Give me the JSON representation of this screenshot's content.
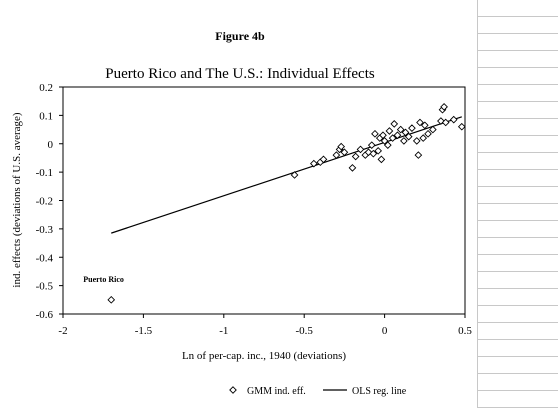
{
  "figure_label": "Figure 4b",
  "chart_data": {
    "type": "scatter",
    "title": "Puerto Rico and The U.S.: Individual Effects",
    "xlabel": "Ln of per-cap. inc., 1940 (deviations)",
    "ylabel": "ind. effects (deviations of U.S. average)",
    "xlim": [
      -2,
      0.5
    ],
    "ylim": [
      -0.6,
      0.2
    ],
    "xticks": [
      -2,
      -1.5,
      -1,
      -0.5,
      0,
      0.5
    ],
    "yticks": [
      0.2,
      0.1,
      0,
      -0.1,
      -0.2,
      -0.3,
      -0.4,
      -0.5,
      -0.6
    ],
    "xtick_labels": [
      "-2",
      "-1.5",
      "-1",
      "-0.5",
      "0",
      "0.5"
    ],
    "ytick_labels": [
      "0.2",
      "0.1",
      "0",
      "-0.1",
      "-0.2",
      "-0.3",
      "-0.4",
      "-0.5",
      "-0.6"
    ],
    "grid": false,
    "legend_position": "bottom",
    "series": [
      {
        "name": "GMM ind. eff.",
        "marker": "diamond",
        "points": [
          [
            -1.7,
            -0.55
          ],
          [
            -0.56,
            -0.11
          ],
          [
            -0.44,
            -0.07
          ],
          [
            -0.4,
            -0.065
          ],
          [
            -0.38,
            -0.055
          ],
          [
            -0.3,
            -0.04
          ],
          [
            -0.28,
            -0.02
          ],
          [
            -0.27,
            -0.01
          ],
          [
            -0.25,
            -0.03
          ],
          [
            -0.2,
            -0.085
          ],
          [
            -0.18,
            -0.045
          ],
          [
            -0.15,
            -0.02
          ],
          [
            -0.12,
            -0.04
          ],
          [
            -0.1,
            -0.03
          ],
          [
            -0.08,
            -0.005
          ],
          [
            -0.07,
            -0.035
          ],
          [
            -0.06,
            0.035
          ],
          [
            -0.04,
            -0.025
          ],
          [
            -0.03,
            0.02
          ],
          [
            -0.02,
            -0.055
          ],
          [
            -0.01,
            0.03
          ],
          [
            0.0,
            0.01
          ],
          [
            0.02,
            -0.005
          ],
          [
            0.03,
            0.045
          ],
          [
            0.05,
            0.02
          ],
          [
            0.06,
            0.07
          ],
          [
            0.08,
            0.03
          ],
          [
            0.1,
            0.05
          ],
          [
            0.12,
            0.01
          ],
          [
            0.13,
            0.04
          ],
          [
            0.15,
            0.025
          ],
          [
            0.17,
            0.055
          ],
          [
            0.2,
            0.01
          ],
          [
            0.21,
            -0.04
          ],
          [
            0.22,
            0.075
          ],
          [
            0.24,
            0.02
          ],
          [
            0.25,
            0.065
          ],
          [
            0.27,
            0.035
          ],
          [
            0.3,
            0.05
          ],
          [
            0.35,
            0.08
          ],
          [
            0.36,
            0.12
          ],
          [
            0.37,
            0.13
          ],
          [
            0.38,
            0.075
          ],
          [
            0.43,
            0.085
          ],
          [
            0.48,
            0.06
          ]
        ]
      },
      {
        "name": "OLS reg. line",
        "line": true,
        "points": [
          [
            -1.7,
            -0.315
          ],
          [
            0.48,
            0.095
          ]
        ]
      }
    ],
    "annotations": [
      {
        "text": "Puerto Rico",
        "x": -1.7,
        "y": -0.47
      }
    ]
  }
}
